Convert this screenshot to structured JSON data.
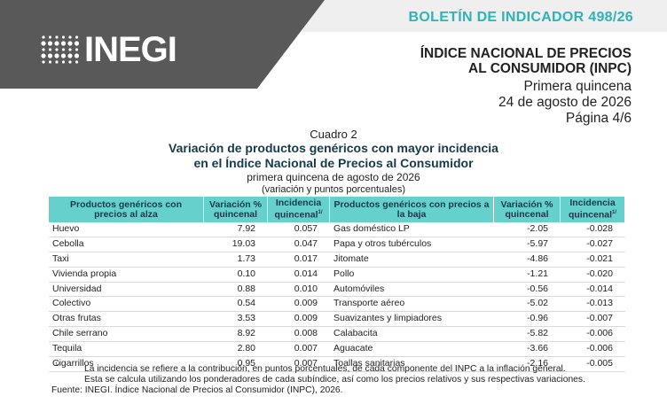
{
  "header": {
    "bulletin": "BOLETÍN DE INDICADOR 498/26",
    "logo": "INEGI",
    "title_lines": [
      "ÍNDICE NACIONAL DE PRECIOS",
      "AL CONSUMIDOR (INPC)"
    ],
    "period": "Primera quincena",
    "date": "24 de agosto de 2026",
    "page": "Página 4/6"
  },
  "cuadro": {
    "label": "Cuadro 2",
    "title_lines": [
      "Variación de productos genéricos con mayor incidencia",
      "en el Índice Nacional de Precios al Consumidor"
    ],
    "subtitle": "primera quincena de agosto de 2026",
    "units": "(variación y puntos porcentuales)"
  },
  "table": {
    "columns": [
      {
        "text": "Productos genéricos con precios al alza"
      },
      {
        "text": "Variación % quincenal"
      },
      {
        "text": "Incidencia quincenal",
        "sup": "1/"
      },
      {
        "text": "Productos genéricos con precios a la baja"
      },
      {
        "text": "Variación % quincenal"
      },
      {
        "text": "Incidencia quincenal",
        "sup": "1/"
      }
    ],
    "rows": [
      [
        "Huevo",
        "7.92",
        "0.057",
        "Gas doméstico LP",
        "-2.05",
        "-0.028"
      ],
      [
        "Cebolla",
        "19.03",
        "0.047",
        "Papa y otros tubérculos",
        "-5.97",
        "-0.027"
      ],
      [
        "Taxi",
        "1.73",
        "0.017",
        "Jitomate",
        "-4.86",
        "-0.021"
      ],
      [
        "Vivienda propia",
        "0.10",
        "0.014",
        "Pollo",
        "-1.21",
        "-0.020"
      ],
      [
        "Universidad",
        "0.88",
        "0.010",
        "Automóviles",
        "-0.56",
        "-0.014"
      ],
      [
        "Colectivo",
        "0.54",
        "0.009",
        "Transporte aéreo",
        "-5.02",
        "-0.013"
      ],
      [
        "Otras frutas",
        "3.53",
        "0.009",
        "Suavizantes y limpiadores",
        "-0.96",
        "-0.007"
      ],
      [
        "Chile serrano",
        "8.92",
        "0.008",
        "Calabacita",
        "-5.82",
        "-0.006"
      ],
      [
        "Tequila",
        "2.80",
        "0.007",
        "Aguacate",
        "-3.66",
        "-0.006"
      ],
      [
        "Cigarrillos",
        "0.95",
        "0.007",
        "Toallas sanitarias",
        "-2.16",
        "-0.005"
      ]
    ]
  },
  "footnote": {
    "marker": "1/",
    "lines": [
      "La incidencia se refiere a la contribución, en puntos porcentuales, de cada componente del INPC a la inflación general.",
      "Esta se calcula utilizando los ponderadores de cada subíndice, así como los precios relativos y sus respectivas variaciones."
    ]
  },
  "source": "Fuente: INEGI. Índice Nacional de Precios al Consumidor (INPC), 2026."
}
